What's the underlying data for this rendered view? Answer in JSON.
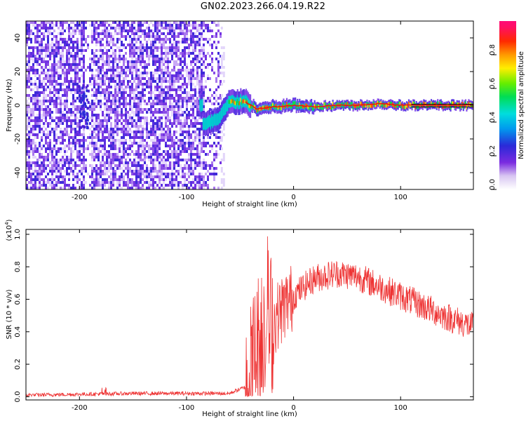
{
  "title": "GN02.2023.266.04.19.R22",
  "chart_data": [
    {
      "type": "heatmap",
      "xlabel": "Height of straight line (km)",
      "ylabel": "Frequency (Hz)",
      "xlim": [
        -250,
        168
      ],
      "ylim": [
        -50,
        50
      ],
      "x_ticks": [
        -200,
        -100,
        0,
        100
      ],
      "y_ticks": [
        -40,
        -20,
        0,
        20,
        40
      ],
      "colorbar": {
        "label": "Normalized spectral amplitude",
        "range": [
          0,
          1
        ],
        "ticks": [
          "0.0",
          "0.2",
          "0.4",
          "0.6",
          "0.8"
        ]
      },
      "description_data": {
        "noise_region_x": [
          -250,
          -68
        ],
        "signal_line": [
          {
            "x": -85,
            "y": -12
          },
          {
            "x": -70,
            "y": -8
          },
          {
            "x": -60,
            "y": 2
          },
          {
            "x": -45,
            "y": 2
          },
          {
            "x": -35,
            "y": -2
          },
          {
            "x": -20,
            "y": -1
          },
          {
            "x": 0,
            "y": 0
          },
          {
            "x": 20,
            "y": -1
          },
          {
            "x": 40,
            "y": 0
          },
          {
            "x": 60,
            "y": 0
          },
          {
            "x": 80,
            "y": 1
          },
          {
            "x": 100,
            "y": 0
          },
          {
            "x": 168,
            "y": 0
          }
        ]
      }
    },
    {
      "type": "line",
      "xlabel": "Height of straight line (km)",
      "ylabel": "SNR (10 * v/v)",
      "multiplier_label": "(x10",
      "multiplier_exp": "4",
      "xlim": [
        -250,
        168
      ],
      "ylim": [
        -0.02,
        1.03
      ],
      "x_ticks": [
        -200,
        -100,
        0,
        100
      ],
      "y_ticks": [
        "0.0",
        "0.2",
        "0.4",
        "0.6",
        "0.8",
        "1.0"
      ],
      "color": "#ee3333",
      "envelope": [
        {
          "x": -250,
          "y": 0.01
        },
        {
          "x": -200,
          "y": 0.015
        },
        {
          "x": -150,
          "y": 0.02
        },
        {
          "x": -100,
          "y": 0.02
        },
        {
          "x": -60,
          "y": 0.02
        },
        {
          "x": -45,
          "y": 0.06
        },
        {
          "x": -40,
          "y": 0.15
        },
        {
          "x": -35,
          "y": 0.3
        },
        {
          "x": -30,
          "y": 0.4
        },
        {
          "x": -25,
          "y": 0.5
        },
        {
          "x": -20,
          "y": 0.45
        },
        {
          "x": -10,
          "y": 0.55
        },
        {
          "x": 0,
          "y": 0.62
        },
        {
          "x": 10,
          "y": 0.68
        },
        {
          "x": 20,
          "y": 0.73
        },
        {
          "x": 40,
          "y": 0.76
        },
        {
          "x": 60,
          "y": 0.74
        },
        {
          "x": 80,
          "y": 0.68
        },
        {
          "x": 100,
          "y": 0.62
        },
        {
          "x": 120,
          "y": 0.56
        },
        {
          "x": 140,
          "y": 0.5
        },
        {
          "x": 168,
          "y": 0.43
        }
      ]
    }
  ]
}
